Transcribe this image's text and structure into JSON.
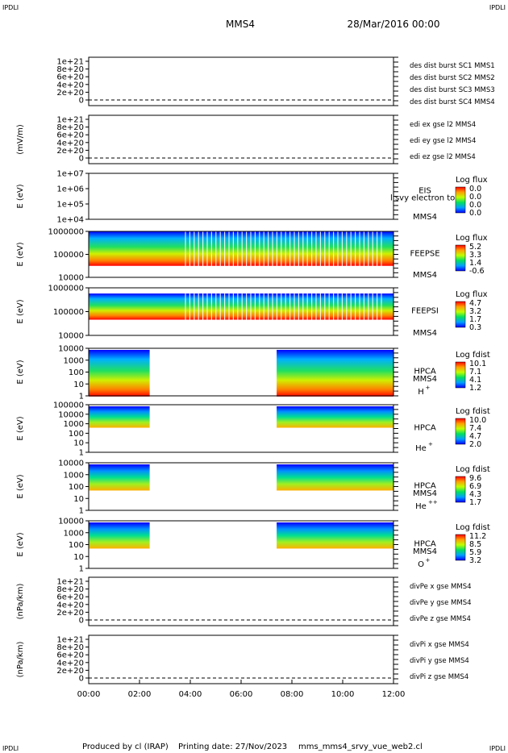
{
  "header": {
    "corner_tl": "IPDLI",
    "corner_tr": "IPDLI",
    "corner_bl": "IPDLI",
    "corner_br": "IPDLI",
    "spacecraft": "MMS4",
    "datetime": "28/Mar/2016 00:00"
  },
  "footer": {
    "produced_by": "Produced by cl (IRAP)",
    "printing_date": "Printing date: 27/Nov/2023",
    "file": "mms_mms4_srvy_vue_web2.cl"
  },
  "colors": {
    "mms1": "#0000cc",
    "mms2": "#cc00cc",
    "mms3": "#cc0000",
    "mms4": "#00cc00",
    "x_comp": "#cc0000",
    "y_comp": "#00cc00",
    "z_comp": "#0000cc"
  },
  "chart_data": [
    {
      "type": "line",
      "panel": "des-dist",
      "ylabel": "",
      "yticks": [
        "1e+21",
        "8e+20",
        "6e+20",
        "4e+20",
        "2e+20",
        "0"
      ],
      "ylim": [
        0,
        1e+21
      ],
      "series": [
        {
          "name": "des dist burst SC1 MMS1",
          "color": "#0000cc"
        },
        {
          "name": "des dist burst SC2 MMS2",
          "color": "#cc00cc"
        },
        {
          "name": "des dist burst SC3 MMS3",
          "color": "#cc0000"
        },
        {
          "name": "des dist burst SC4 MMS4",
          "color": "#00cc00"
        }
      ]
    },
    {
      "type": "line",
      "panel": "edi",
      "ylabel": "(mV/m)",
      "yticks": [
        "1e+21",
        "8e+20",
        "6e+20",
        "4e+20",
        "2e+20",
        "0"
      ],
      "ylim": [
        0,
        1e+21
      ],
      "series": [
        {
          "name": "edi ex gse l2 MMS4",
          "color": "#cc0000"
        },
        {
          "name": "edi ey gse l2 MMS4",
          "color": "#00cc00"
        },
        {
          "name": "edi ez gse l2 MMS4",
          "color": "#0000cc"
        }
      ]
    },
    {
      "type": "heatmap",
      "panel": "eis",
      "ylabel": "E (eV)",
      "yticks": [
        "1e+07",
        "1e+06",
        "1e+05",
        "1e+04"
      ],
      "ylim": [
        10000,
        10000000
      ],
      "yscale": "log",
      "instrument": "EIS",
      "overlay": "l svy electron to",
      "spacecraft": "MMS4",
      "colorbar": {
        "label": "Log flux",
        "ticks": [
          "0.0",
          "0.0",
          "0.0",
          "0.0"
        ]
      }
    },
    {
      "type": "heatmap",
      "panel": "feeps-e",
      "ylabel": "E (eV)",
      "yticks": [
        "1000000",
        "100000",
        "10000"
      ],
      "ylim": [
        10000,
        1000000
      ],
      "yscale": "log",
      "instrument": "FEEPSE",
      "spacecraft": "MMS4",
      "colorbar": {
        "label": "Log flux",
        "ticks": [
          "5.2",
          "3.3",
          "1.4",
          "-0.6"
        ]
      }
    },
    {
      "type": "heatmap",
      "panel": "feeps-i",
      "ylabel": "E (eV)",
      "yticks": [
        "1000000",
        "100000",
        "10000"
      ],
      "ylim": [
        10000,
        1000000
      ],
      "yscale": "log",
      "instrument": "FEEPSI",
      "spacecraft": "MMS4",
      "colorbar": {
        "label": "Log flux",
        "ticks": [
          "4.7",
          "3.2",
          "1.7",
          "0.3"
        ]
      }
    },
    {
      "type": "heatmap",
      "panel": "hpca-h",
      "ylabel": "E (eV)",
      "yticks": [
        "10000",
        "1000",
        "100",
        "10",
        "1"
      ],
      "ylim": [
        1,
        30000
      ],
      "yscale": "log",
      "instrument": "HPCA",
      "spacecraft": "MMS4",
      "species": "H",
      "species_sup": "+",
      "colorbar": {
        "label": "Log fdist",
        "ticks": [
          "10.1",
          "7.1",
          "4.1",
          "1.2"
        ]
      }
    },
    {
      "type": "heatmap",
      "panel": "hpca-he1",
      "ylabel": "E (eV)",
      "yticks": [
        "100000",
        "10000",
        "1000",
        "100",
        "10",
        "1"
      ],
      "ylim": [
        1,
        100000
      ],
      "yscale": "log",
      "instrument": "HPCA",
      "spacecraft": "",
      "species": "He",
      "species_sup": "+",
      "colorbar": {
        "label": "Log fdist",
        "ticks": [
          "10.0",
          "7.4",
          "4.7",
          "2.0"
        ]
      }
    },
    {
      "type": "heatmap",
      "panel": "hpca-he2",
      "ylabel": "E (eV)",
      "yticks": [
        "10000",
        "1000",
        "100",
        "10",
        "1"
      ],
      "ylim": [
        1,
        30000
      ],
      "yscale": "log",
      "instrument": "HPCA",
      "spacecraft": "MMS4",
      "species": "He",
      "species_sup": "++",
      "colorbar": {
        "label": "Log fdist",
        "ticks": [
          "9.6",
          "6.9",
          "4.3",
          "1.7"
        ]
      }
    },
    {
      "type": "heatmap",
      "panel": "hpca-o",
      "ylabel": "E (eV)",
      "yticks": [
        "10000",
        "1000",
        "100",
        "10",
        "1"
      ],
      "ylim": [
        1,
        30000
      ],
      "yscale": "log",
      "instrument": "HPCA",
      "spacecraft": "MMS4",
      "species": "O",
      "species_sup": "+",
      "colorbar": {
        "label": "Log fdist",
        "ticks": [
          "11.2",
          "8.5",
          "5.9",
          "3.2"
        ]
      }
    },
    {
      "type": "line",
      "panel": "divpe",
      "ylabel": "(nPa/km)",
      "yticks": [
        "1e+21",
        "8e+20",
        "6e+20",
        "4e+20",
        "2e+20",
        "0"
      ],
      "ylim": [
        0,
        1e+21
      ],
      "series": [
        {
          "name": "divPe x gse MMS4",
          "color": "#cc0000"
        },
        {
          "name": "divPe y gse MMS4",
          "color": "#00cc00"
        },
        {
          "name": "divPe z gse MMS4",
          "color": "#0000cc"
        }
      ]
    },
    {
      "type": "line",
      "panel": "divpi",
      "ylabel": "(nPa/km)",
      "yticks": [
        "1e+21",
        "8e+20",
        "6e+20",
        "4e+20",
        "2e+20",
        "0"
      ],
      "ylim": [
        0,
        1e+21
      ],
      "series": [
        {
          "name": "divPi x gse MMS4",
          "color": "#cc0000"
        },
        {
          "name": "divPi y gse MMS4",
          "color": "#00cc00"
        },
        {
          "name": "divPi z gse MMS4",
          "color": "#0000cc"
        }
      ]
    }
  ],
  "time_axis": {
    "ticks": [
      "00:00",
      "02:00",
      "04:00",
      "06:00",
      "08:00",
      "10:00",
      "12:00"
    ],
    "range_hours": [
      0,
      12
    ],
    "hpca_data_gaps_hours": [
      [
        2.4,
        7.4
      ]
    ]
  }
}
